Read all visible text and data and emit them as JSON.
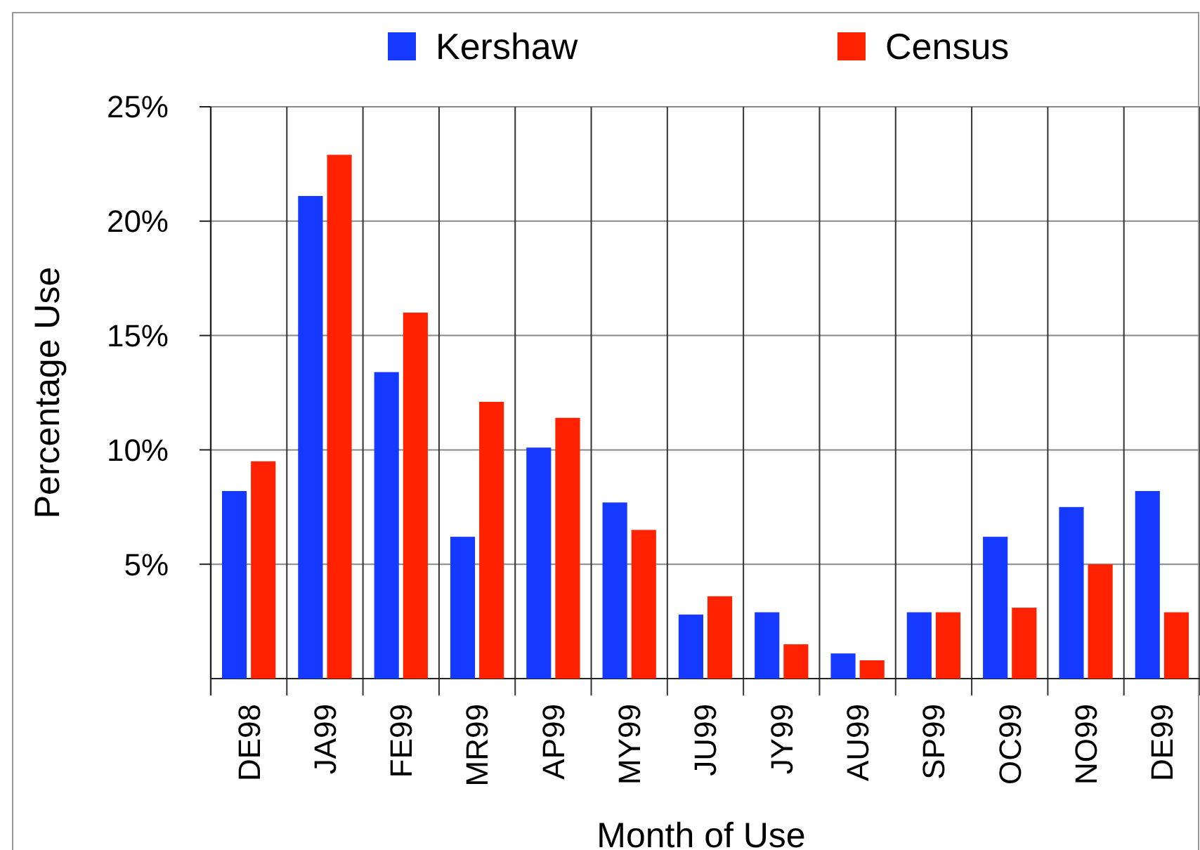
{
  "chart_data": {
    "type": "bar",
    "xlabel": "Month of Use",
    "ylabel": "Percentage Use",
    "categories": [
      "DE98",
      "JA99",
      "FE99",
      "MR99",
      "AP99",
      "MY99",
      "JU99",
      "JY99",
      "AU99",
      "SP99",
      "OC99",
      "NO99",
      "DE99"
    ],
    "series": [
      {
        "name": "Kershaw",
        "color": "#1539ff",
        "values": [
          8.2,
          21.1,
          13.4,
          6.2,
          10.1,
          7.7,
          2.8,
          2.9,
          1.1,
          2.9,
          6.2,
          7.5,
          8.2
        ]
      },
      {
        "name": "Census",
        "color": "#ff2200",
        "values": [
          9.5,
          22.9,
          16.0,
          12.1,
          11.4,
          6.5,
          3.6,
          1.5,
          0.8,
          2.9,
          3.1,
          5.0,
          2.9
        ]
      }
    ],
    "ylim": [
      0,
      25
    ],
    "yticks": [
      {
        "value": 5,
        "label": "5%"
      },
      {
        "value": 10,
        "label": "10%"
      },
      {
        "value": 15,
        "label": "15%"
      },
      {
        "value": 20,
        "label": "20%"
      },
      {
        "value": 25,
        "label": "25%"
      }
    ],
    "grid": true,
    "legend": "top"
  }
}
